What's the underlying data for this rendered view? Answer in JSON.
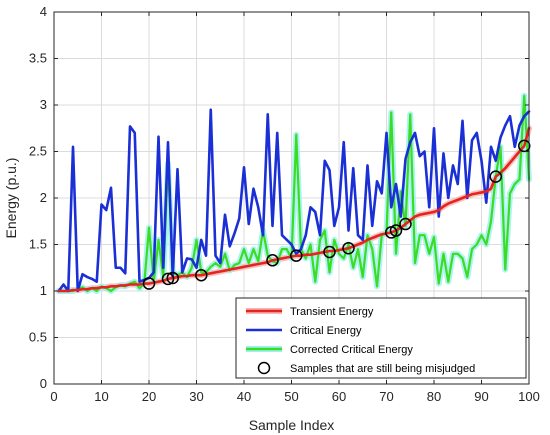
{
  "chart_data": {
    "type": "line",
    "title": "",
    "xlabel": "Sample Index",
    "ylabel": "Energy (p.u.)",
    "xlim": [
      0,
      100
    ],
    "ylim": [
      0,
      4
    ],
    "xticks": [
      0,
      10,
      20,
      30,
      40,
      50,
      60,
      70,
      80,
      90,
      100
    ],
    "yticks": [
      0,
      0.5,
      1,
      1.5,
      2,
      2.5,
      3,
      3.5,
      4
    ],
    "xtick_labels": [
      "0",
      "10",
      "20",
      "30",
      "40",
      "50",
      "60",
      "70",
      "80",
      "90",
      "100"
    ],
    "ytick_labels": [
      "0",
      "0.5",
      "1",
      "1.5",
      "2",
      "2.5",
      "3",
      "3.5",
      "4"
    ],
    "grid": true,
    "legend_position": "bottom-right",
    "x": [
      1,
      2,
      3,
      4,
      5,
      6,
      7,
      8,
      9,
      10,
      11,
      12,
      13,
      14,
      15,
      16,
      17,
      18,
      19,
      20,
      21,
      22,
      23,
      24,
      25,
      26,
      27,
      28,
      29,
      30,
      31,
      32,
      33,
      34,
      35,
      36,
      37,
      38,
      39,
      40,
      41,
      42,
      43,
      44,
      45,
      46,
      47,
      48,
      49,
      50,
      51,
      52,
      53,
      54,
      55,
      56,
      57,
      58,
      59,
      60,
      61,
      62,
      63,
      64,
      65,
      66,
      67,
      68,
      69,
      70,
      71,
      72,
      73,
      74,
      75,
      76,
      77,
      78,
      79,
      80,
      81,
      82,
      83,
      84,
      85,
      86,
      87,
      88,
      89,
      90,
      91,
      92,
      93,
      94,
      95,
      96,
      97,
      98,
      99,
      100
    ],
    "series": [
      {
        "name": "Transient Energy",
        "color": "#e8231c",
        "band_color": "#f5b7b7",
        "values": [
          1.0,
          1.0,
          1.0,
          1.01,
          1.01,
          1.02,
          1.02,
          1.03,
          1.03,
          1.04,
          1.04,
          1.05,
          1.05,
          1.06,
          1.06,
          1.07,
          1.07,
          1.07,
          1.08,
          1.08,
          1.09,
          1.1,
          1.11,
          1.13,
          1.14,
          1.15,
          1.16,
          1.16,
          1.17,
          1.17,
          1.17,
          1.18,
          1.19,
          1.2,
          1.21,
          1.22,
          1.23,
          1.24,
          1.25,
          1.26,
          1.27,
          1.28,
          1.29,
          1.3,
          1.31,
          1.33,
          1.34,
          1.35,
          1.36,
          1.37,
          1.38,
          1.38,
          1.39,
          1.39,
          1.4,
          1.41,
          1.42,
          1.43,
          1.43,
          1.44,
          1.45,
          1.46,
          1.48,
          1.5,
          1.52,
          1.55,
          1.57,
          1.59,
          1.61,
          1.62,
          1.63,
          1.65,
          1.68,
          1.72,
          1.76,
          1.8,
          1.82,
          1.83,
          1.84,
          1.85,
          1.87,
          1.91,
          1.94,
          1.96,
          1.98,
          2.0,
          2.02,
          2.04,
          2.05,
          2.06,
          2.07,
          2.1,
          2.23,
          2.27,
          2.32,
          2.38,
          2.44,
          2.5,
          2.56,
          2.75
        ]
      },
      {
        "name": "Critical Energy",
        "color": "#1a2fd6",
        "values": [
          1.0,
          1.07,
          1.0,
          2.55,
          1.0,
          1.18,
          1.15,
          1.13,
          1.1,
          1.93,
          1.87,
          2.11,
          1.25,
          1.25,
          1.19,
          2.77,
          2.7,
          1.1,
          1.12,
          1.14,
          1.2,
          2.66,
          1.25,
          2.6,
          1.15,
          2.31,
          1.2,
          1.35,
          1.34,
          1.25,
          1.55,
          1.38,
          2.95,
          1.38,
          1.3,
          1.82,
          1.48,
          1.62,
          1.78,
          2.33,
          1.72,
          2.1,
          1.9,
          1.6,
          2.9,
          1.7,
          2.7,
          1.6,
          1.55,
          1.5,
          1.4,
          1.45,
          1.6,
          1.9,
          1.85,
          1.6,
          2.4,
          2.3,
          1.7,
          1.9,
          2.6,
          1.65,
          2.32,
          1.6,
          1.55,
          2.35,
          1.7,
          2.18,
          2.05,
          2.7,
          1.9,
          2.15,
          1.8,
          2.42,
          2.6,
          2.7,
          2.45,
          2.5,
          1.9,
          2.75,
          1.8,
          2.48,
          2.0,
          2.35,
          2.15,
          2.83,
          2.0,
          2.62,
          2.7,
          2.4,
          1.95,
          2.55,
          2.4,
          2.65,
          2.78,
          2.88,
          2.55,
          2.78,
          2.88,
          2.93
        ]
      },
      {
        "name": "Corrected Critical Energy",
        "color": "#3cdc23",
        "band_color": "#9ff2ee",
        "values": [
          1.0,
          1.0,
          1.0,
          1.0,
          1.02,
          1.04,
          1.0,
          1.03,
          1.0,
          1.05,
          1.03,
          1.0,
          1.04,
          1.06,
          1.05,
          1.08,
          1.1,
          1.03,
          1.08,
          1.68,
          1.1,
          1.55,
          1.15,
          2.37,
          1.2,
          1.17,
          1.2,
          1.15,
          1.25,
          1.55,
          1.2,
          1.2,
          1.26,
          1.3,
          1.26,
          1.4,
          1.22,
          1.28,
          1.3,
          1.45,
          1.3,
          1.45,
          1.32,
          1.65,
          1.38,
          1.32,
          1.3,
          1.45,
          1.45,
          1.35,
          2.68,
          1.45,
          1.35,
          1.5,
          1.1,
          1.55,
          1.65,
          1.2,
          1.55,
          1.4,
          1.35,
          1.5,
          1.25,
          1.45,
          1.15,
          1.6,
          1.45,
          1.05,
          1.6,
          1.62,
          2.92,
          1.4,
          2.07,
          1.7,
          2.9,
          1.3,
          1.6,
          1.6,
          1.4,
          1.58,
          1.08,
          1.4,
          1.1,
          1.4,
          1.4,
          1.35,
          1.15,
          1.45,
          1.5,
          1.6,
          1.5,
          1.75,
          2.23,
          2.55,
          1.23,
          2.05,
          2.15,
          2.2,
          3.1,
          2.2
        ]
      }
    ],
    "misjudged_samples": {
      "name": "Samples that are still being misjudged",
      "x": [
        20,
        24,
        25,
        31,
        46,
        51,
        58,
        62,
        71,
        72,
        74,
        93,
        99
      ],
      "y": [
        1.08,
        1.13,
        1.14,
        1.17,
        1.33,
        1.38,
        1.42,
        1.46,
        1.63,
        1.65,
        1.72,
        2.23,
        2.56
      ]
    },
    "legend": [
      "Transient Energy",
      "Critical Energy",
      "Corrected Critical Energy",
      "Samples that are still being misjudged"
    ]
  }
}
